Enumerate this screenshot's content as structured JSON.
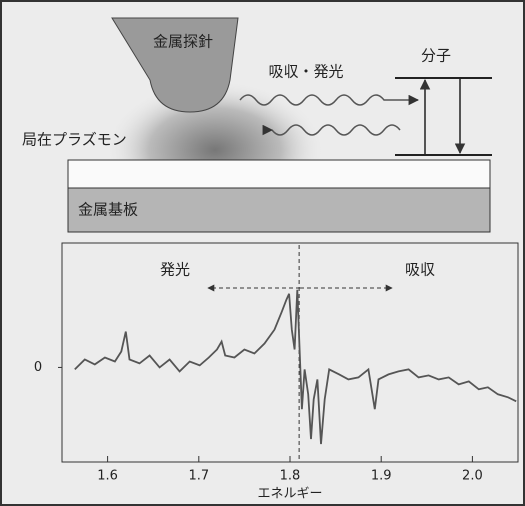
{
  "diagram": {
    "tip": "金属探針",
    "process": "吸収・発光",
    "molecule": "分子",
    "plasmon": "局在プラズモン",
    "substrate": "金属基板"
  },
  "chart_data": {
    "type": "line",
    "xlabel": "エネルギー",
    "annotations": {
      "left": "発光",
      "right": "吸収"
    },
    "vline": 1.81,
    "xlim": [
      1.55,
      2.05
    ],
    "ylim": [
      -1.9,
      2.5
    ],
    "xticks": [
      1.6,
      1.7,
      1.8,
      1.9,
      {
        "value": 2.0,
        "label": "2.0"
      }
    ],
    "yticks": [
      0
    ],
    "series": [
      {
        "color": "#555555",
        "x": [
          1.564,
          1.575,
          1.586,
          1.597,
          1.608,
          1.615,
          1.62,
          1.624,
          1.635,
          1.646,
          1.657,
          1.668,
          1.679,
          1.69,
          1.701,
          1.711,
          1.72,
          1.725,
          1.729,
          1.739,
          1.75,
          1.761,
          1.772,
          1.783,
          1.791,
          1.796,
          1.799,
          1.802,
          1.805,
          1.808,
          1.813,
          1.816,
          1.82,
          1.823,
          1.826,
          1.83,
          1.834,
          1.838,
          1.843,
          1.854,
          1.864,
          1.875,
          1.886,
          1.893,
          1.897,
          1.908,
          1.919,
          1.93,
          1.941,
          1.952,
          1.963,
          1.974,
          1.985,
          1.996,
          2.007,
          2.017,
          2.028,
          2.039,
          2.048
        ],
        "values": [
          -0.04,
          0.16,
          0.06,
          0.2,
          0.12,
          0.32,
          0.72,
          0.16,
          0.08,
          0.24,
          0,
          0.16,
          -0.08,
          0.12,
          0.04,
          0.2,
          0.36,
          0.52,
          0.24,
          0.2,
          0.36,
          0.28,
          0.48,
          0.76,
          1.12,
          1.36,
          1.48,
          0.76,
          0.36,
          1.56,
          -0.84,
          -0.04,
          -0.54,
          -1.44,
          -0.64,
          -0.24,
          -1.54,
          -0.64,
          -0.04,
          -0.14,
          -0.24,
          -0.2,
          -0.04,
          -0.84,
          -0.24,
          -0.14,
          -0.08,
          -0.04,
          -0.2,
          -0.16,
          -0.24,
          -0.2,
          -0.34,
          -0.28,
          -0.44,
          -0.4,
          -0.54,
          -0.6,
          -0.68
        ]
      }
    ]
  }
}
